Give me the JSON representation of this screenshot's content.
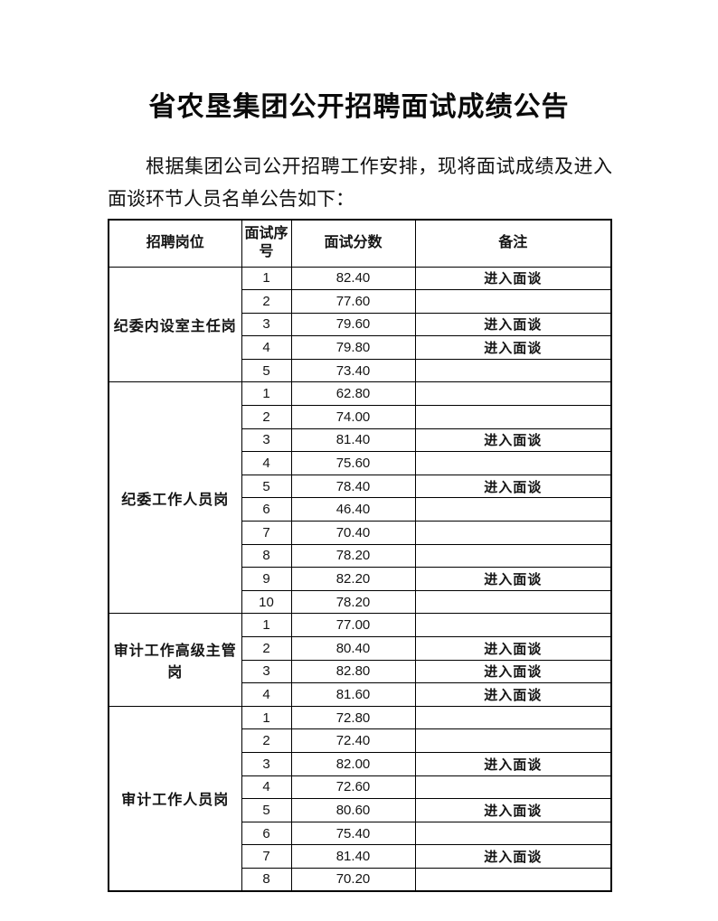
{
  "page": {
    "title": "省农垦集团公开招聘面试成绩公告",
    "intro": "根据集团公司公开招聘工作安排，现将面试成绩及进入面谈环节人员名单公告如下："
  },
  "table": {
    "headers": [
      "招聘岗位",
      "面试序号",
      "面试分数",
      "备注"
    ],
    "groups": [
      {
        "position": "纪委内设室主任岗",
        "rows": [
          {
            "seq": "1",
            "score": "82.40",
            "remark": "进入面谈"
          },
          {
            "seq": "2",
            "score": "77.60",
            "remark": ""
          },
          {
            "seq": "3",
            "score": "79.60",
            "remark": "进入面谈"
          },
          {
            "seq": "4",
            "score": "79.80",
            "remark": "进入面谈"
          },
          {
            "seq": "5",
            "score": "73.40",
            "remark": ""
          }
        ]
      },
      {
        "position": "纪委工作人员岗",
        "rows": [
          {
            "seq": "1",
            "score": "62.80",
            "remark": ""
          },
          {
            "seq": "2",
            "score": "74.00",
            "remark": ""
          },
          {
            "seq": "3",
            "score": "81.40",
            "remark": "进入面谈"
          },
          {
            "seq": "4",
            "score": "75.60",
            "remark": ""
          },
          {
            "seq": "5",
            "score": "78.40",
            "remark": "进入面谈"
          },
          {
            "seq": "6",
            "score": "46.40",
            "remark": ""
          },
          {
            "seq": "7",
            "score": "70.40",
            "remark": ""
          },
          {
            "seq": "8",
            "score": "78.20",
            "remark": ""
          },
          {
            "seq": "9",
            "score": "82.20",
            "remark": "进入面谈"
          },
          {
            "seq": "10",
            "score": "78.20",
            "remark": ""
          }
        ]
      },
      {
        "position": "审计工作高级主管岗",
        "rows": [
          {
            "seq": "1",
            "score": "77.00",
            "remark": ""
          },
          {
            "seq": "2",
            "score": "80.40",
            "remark": "进入面谈"
          },
          {
            "seq": "3",
            "score": "82.80",
            "remark": "进入面谈"
          },
          {
            "seq": "4",
            "score": "81.60",
            "remark": "进入面谈"
          }
        ]
      },
      {
        "position": "审计工作人员岗",
        "rows": [
          {
            "seq": "1",
            "score": "72.80",
            "remark": ""
          },
          {
            "seq": "2",
            "score": "72.40",
            "remark": ""
          },
          {
            "seq": "3",
            "score": "82.00",
            "remark": "进入面谈"
          },
          {
            "seq": "4",
            "score": "72.60",
            "remark": ""
          },
          {
            "seq": "5",
            "score": "80.60",
            "remark": "进入面谈"
          },
          {
            "seq": "6",
            "score": "75.40",
            "remark": ""
          },
          {
            "seq": "7",
            "score": "81.40",
            "remark": "进入面谈"
          },
          {
            "seq": "8",
            "score": "70.20",
            "remark": ""
          }
        ]
      }
    ]
  }
}
